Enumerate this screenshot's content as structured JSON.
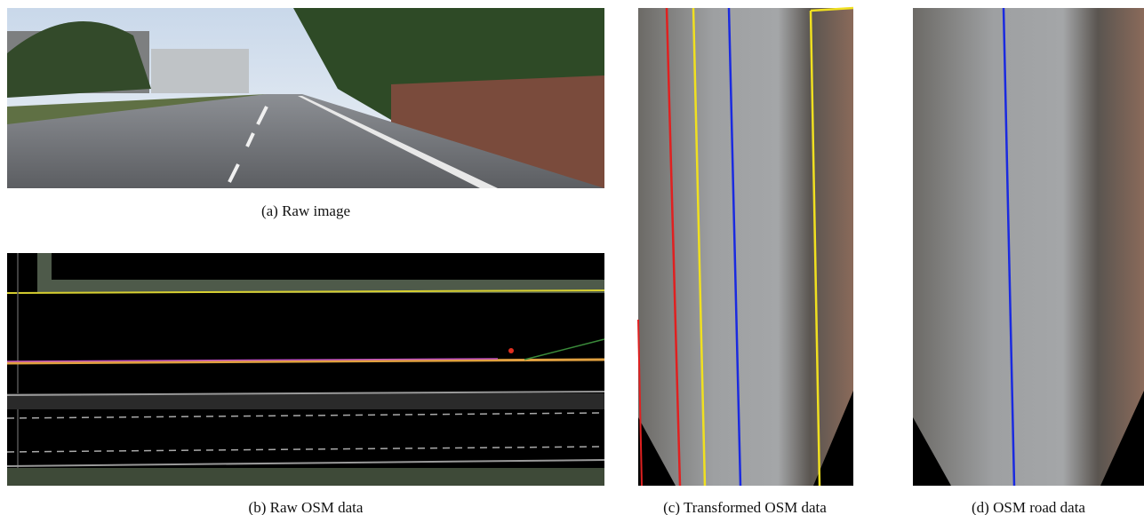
{
  "figures": [
    {
      "label": "(a)",
      "caption": "Raw image"
    },
    {
      "label": "(b)",
      "caption": "Raw OSM data"
    },
    {
      "label": "(c)",
      "caption": "Transformed OSM data"
    },
    {
      "label": "(d)",
      "caption": "OSM road data"
    }
  ]
}
